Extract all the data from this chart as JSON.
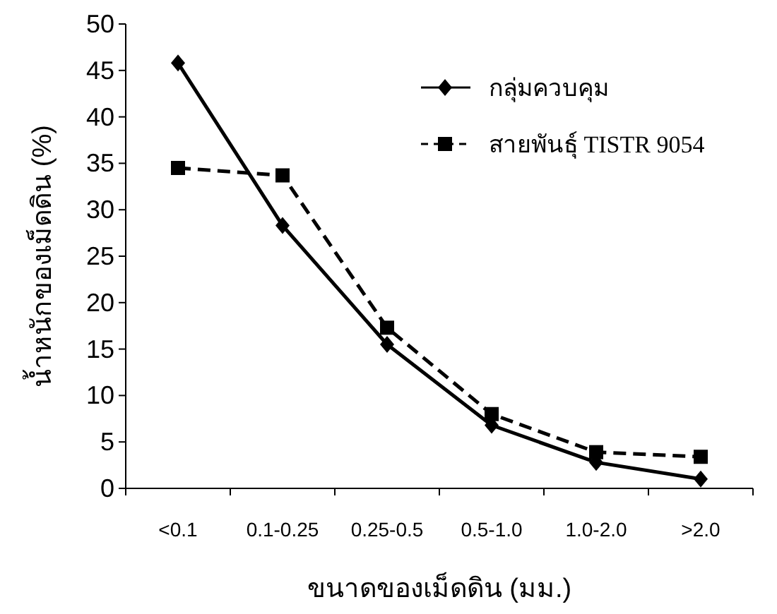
{
  "chart_data": {
    "type": "line",
    "xlabel": "ขนาดของเม็ดดิน (มม.)",
    "ylabel": "น้ำหนักของเม็ดดิน (%)",
    "categories": [
      "<0.1",
      "0.1-0.25",
      "0.25-0.5",
      "0.5-1.0",
      "1.0-2.0",
      ">2.0"
    ],
    "series": [
      {
        "name": "กลุ่มควบคุม",
        "color": "#000000",
        "marker": "diamond",
        "line_style": "solid",
        "values": [
          45.8,
          28.3,
          15.5,
          6.8,
          2.8,
          1.0
        ]
      },
      {
        "name": "สายพันธุ์ TISTR 9054",
        "color": "#000000",
        "marker": "square",
        "line_style": "dashed",
        "values": [
          34.5,
          33.7,
          17.3,
          8.0,
          3.9,
          3.4
        ]
      }
    ],
    "ylim": [
      0,
      50
    ],
    "yticks": [
      0,
      5,
      10,
      15,
      20,
      25,
      30,
      35,
      40,
      45,
      50
    ],
    "grid": false,
    "legend": "top right"
  }
}
